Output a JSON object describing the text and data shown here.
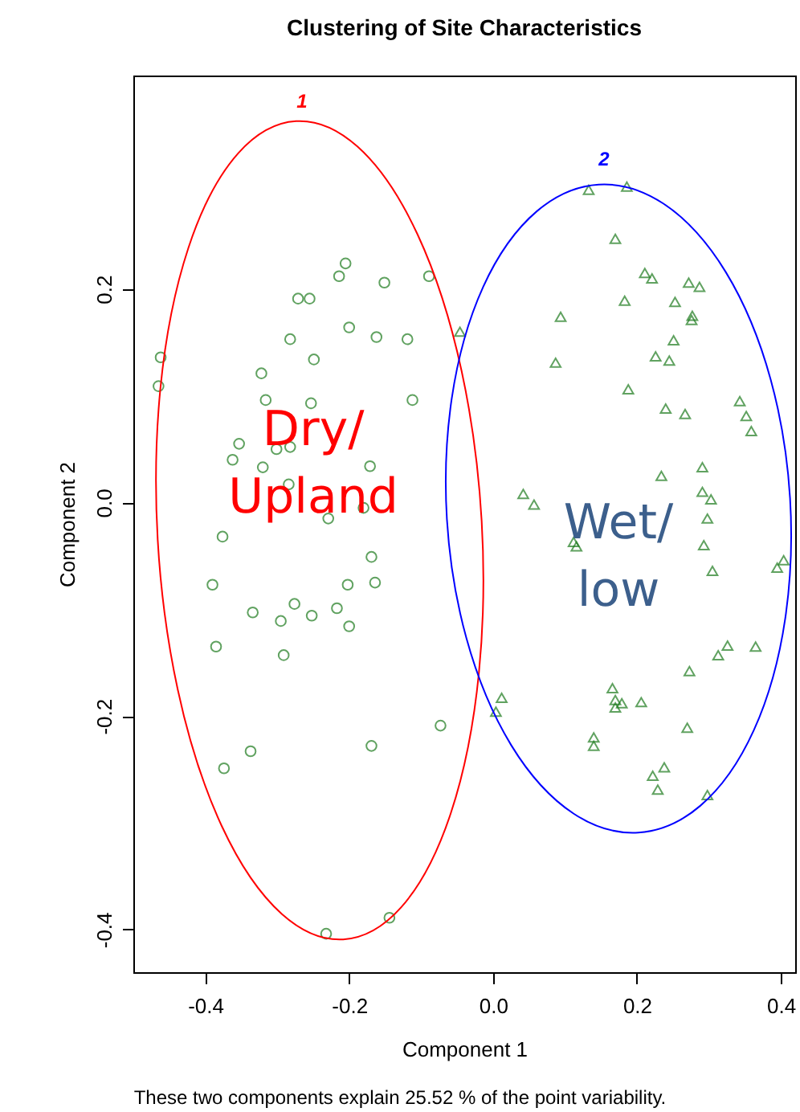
{
  "chart_data": {
    "type": "scatter",
    "title": "Clustering of Site Characteristics",
    "xlabel": "Component 1",
    "ylabel": "Component 2",
    "xlim": [
      -0.5,
      0.42
    ],
    "ylim": [
      -0.44,
      0.4
    ],
    "xticks": [
      -0.4,
      -0.2,
      {
        "value": 0,
        "label": "0.0"
      },
      0.2,
      0.4
    ],
    "yticks": [
      -0.4,
      -0.2,
      {
        "value": 0,
        "label": "0.0"
      },
      0.2
    ],
    "grid": false,
    "annotations": [
      "1",
      "2",
      "Dry/\nUpland",
      "Wet/\nlow",
      "These two components explain 25.52 % of the point variability."
    ],
    "series": [
      {
        "marker": "circle",
        "color": "#1e7b1e",
        "x": [
          -0.205,
          -0.214,
          -0.151,
          -0.089,
          -0.271,
          -0.255,
          -0.2,
          -0.282,
          -0.162,
          -0.119,
          -0.462,
          -0.249,
          -0.322,
          -0.465,
          -0.316,
          -0.253,
          -0.112,
          -0.353,
          -0.362,
          -0.301,
          -0.282,
          -0.32,
          -0.284,
          -0.171,
          -0.18,
          -0.229,
          -0.376,
          -0.169,
          -0.39,
          -0.202,
          -0.164,
          -0.334,
          -0.276,
          -0.295,
          -0.252,
          -0.217,
          -0.2,
          -0.385,
          -0.291,
          -0.073,
          -0.169,
          -0.337,
          -0.374,
          -0.144,
          -0.232
        ],
        "values": [
          0.224,
          0.212,
          0.206,
          0.212,
          0.191,
          0.191,
          0.164,
          0.153,
          0.155,
          0.153,
          0.136,
          0.134,
          0.121,
          0.109,
          0.096,
          0.093,
          0.096,
          0.055,
          0.04,
          0.05,
          0.052,
          0.033,
          0.017,
          0.034,
          -0.005,
          -0.015,
          -0.032,
          -0.051,
          -0.077,
          -0.077,
          -0.075,
          -0.103,
          -0.095,
          -0.111,
          -0.106,
          -0.099,
          -0.116,
          -0.135,
          -0.143,
          -0.209,
          -0.228,
          -0.233,
          -0.249,
          -0.389,
          -0.404
        ]
      },
      {
        "marker": "triangle",
        "color": "#1e7b1e",
        "x": [
          -0.046,
          0.133,
          0.186,
          0.17,
          0.211,
          0.221,
          0.272,
          0.287,
          0.183,
          0.253,
          0.277,
          0.276,
          0.094,
          0.251,
          0.226,
          0.245,
          0.087,
          0.188,
          0.24,
          0.267,
          0.343,
          0.352,
          0.359,
          0.291,
          0.234,
          0.042,
          0.057,
          0.291,
          0.303,
          0.298,
          0.112,
          0.116,
          0.293,
          0.305,
          0.395,
          0.404,
          0.326,
          0.313,
          0.365,
          0.273,
          0.012,
          0.004,
          0.166,
          0.17,
          0.179,
          0.17,
          0.206,
          0.27,
          0.14,
          0.14,
          0.238,
          0.222,
          0.229,
          0.298
        ],
        "values": [
          0.16,
          0.293,
          0.296,
          0.247,
          0.215,
          0.21,
          0.206,
          0.202,
          0.189,
          0.188,
          0.175,
          0.171,
          0.174,
          0.152,
          0.137,
          0.133,
          0.131,
          0.106,
          0.088,
          0.083,
          0.095,
          0.081,
          0.067,
          0.033,
          0.025,
          0.008,
          -0.002,
          0.01,
          0.003,
          -0.015,
          -0.037,
          -0.041,
          -0.04,
          -0.064,
          -0.061,
          -0.054,
          -0.134,
          -0.143,
          -0.135,
          -0.158,
          -0.183,
          -0.196,
          -0.174,
          -0.185,
          -0.188,
          -0.192,
          -0.187,
          -0.211,
          -0.22,
          -0.228,
          -0.248,
          -0.256,
          -0.269,
          -0.274
        ]
      }
    ]
  }
}
